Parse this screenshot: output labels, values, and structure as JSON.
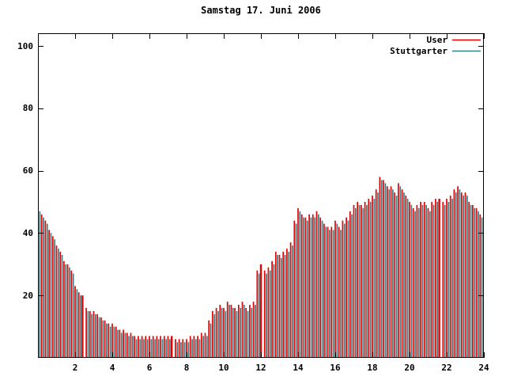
{
  "title": "Samstag 17. Juni 2006",
  "legend": [
    {
      "label": "User",
      "color": "#e60000"
    },
    {
      "label": "Stuttgarter",
      "color": "#357f86"
    }
  ],
  "colors": {
    "user": "#e60000",
    "stuttgarter": "#357f86",
    "axis": "#000000",
    "background": "#ffffff"
  },
  "chart_data": {
    "type": "bar",
    "title": "Samstag 17. Juni 2006",
    "xlabel": "",
    "ylabel": "",
    "x_unit": "hour",
    "x_start": 0,
    "x_step": 0.2,
    "xlim": [
      0,
      24
    ],
    "ylim": [
      0,
      104
    ],
    "x_ticks": [
      2,
      4,
      6,
      8,
      10,
      12,
      14,
      16,
      18,
      20,
      22,
      24
    ],
    "y_ticks": [
      20,
      40,
      60,
      80,
      100
    ],
    "legend_position": "top-right",
    "grid": false,
    "spike_hours": [
      2.4,
      7.2,
      12.0,
      21.6
    ],
    "series": [
      {
        "name": "User",
        "color": "#e60000",
        "values": [
          48,
          46,
          44,
          41,
          39,
          36,
          34,
          31,
          30,
          28,
          23,
          21,
          20,
          16,
          15,
          15,
          14,
          13,
          12,
          11,
          11,
          10,
          9,
          9,
          8,
          8,
          7,
          7,
          7,
          7,
          7,
          7,
          7,
          7,
          7,
          7,
          7,
          6,
          6,
          6,
          6,
          7,
          7,
          7,
          8,
          8,
          12,
          15,
          16,
          17,
          16,
          18,
          17,
          16,
          17,
          18,
          16,
          17,
          18,
          28,
          30,
          28,
          29,
          31,
          34,
          33,
          34,
          35,
          37,
          44,
          48,
          46,
          45,
          46,
          46,
          47,
          45,
          43,
          42,
          42,
          44,
          42,
          44,
          45,
          47,
          49,
          50,
          49,
          50,
          51,
          52,
          54,
          58,
          57,
          55,
          55,
          53,
          56,
          54,
          52,
          50,
          48,
          49,
          50,
          50,
          48,
          50,
          51,
          51,
          50,
          51,
          52,
          54,
          55,
          53,
          53,
          50,
          49,
          48,
          46,
          42
        ]
      },
      {
        "name": "Stuttgarter",
        "color": "#357f86",
        "values": [
          47,
          45,
          43,
          40,
          38,
          35,
          33,
          30,
          29,
          27,
          22,
          20,
          0,
          15,
          14,
          14,
          13,
          12,
          11,
          10,
          10,
          9,
          8,
          8,
          7,
          7,
          6,
          6,
          6,
          6,
          6,
          6,
          6,
          6,
          6,
          6,
          0,
          5,
          5,
          5,
          5,
          6,
          6,
          6,
          7,
          7,
          11,
          14,
          15,
          16,
          15,
          17,
          16,
          15,
          16,
          17,
          15,
          16,
          17,
          27,
          0,
          27,
          28,
          30,
          33,
          32,
          33,
          34,
          36,
          43,
          47,
          45,
          44,
          45,
          45,
          46,
          44,
          42,
          41,
          41,
          43,
          41,
          43,
          44,
          46,
          48,
          49,
          48,
          49,
          50,
          51,
          53,
          57,
          56,
          54,
          54,
          52,
          55,
          53,
          51,
          49,
          47,
          48,
          49,
          49,
          47,
          49,
          50,
          0,
          49,
          50,
          51,
          53,
          54,
          52,
          52,
          49,
          48,
          47,
          45,
          41
        ]
      }
    ]
  }
}
